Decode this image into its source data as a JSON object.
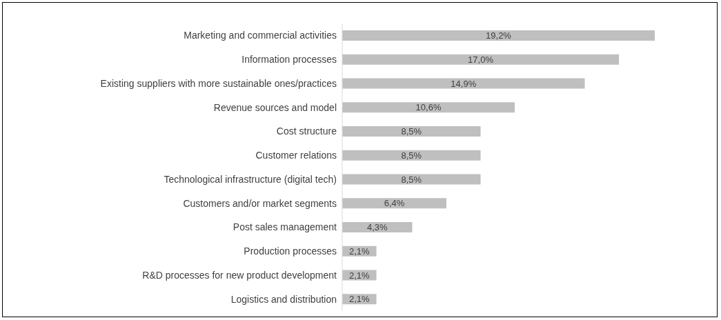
{
  "chart_data": {
    "type": "bar",
    "orientation": "horizontal",
    "categories": [
      "Marketing and commercial activities",
      "Information processes",
      "Existing suppliers with more sustainable ones/practices",
      "Revenue sources and model",
      "Cost structure",
      "Customer relations",
      "Technological infrastructure (digital tech)",
      "Customers and/or market segments",
      "Post sales management",
      "Production processes",
      "R&D processes for new product development",
      "Logistics and distribution"
    ],
    "values": [
      19.2,
      17.0,
      14.9,
      10.6,
      8.5,
      8.5,
      8.5,
      6.4,
      4.3,
      2.1,
      2.1,
      2.1
    ],
    "value_labels": [
      "19,2%",
      "17,0%",
      "14,9%",
      "10,6%",
      "8,5%",
      "8,5%",
      "8,5%",
      "6,4%",
      "4,3%",
      "2,1%",
      "2,1%",
      "2,1%"
    ],
    "color": "#bfbfbf",
    "grid": false,
    "legend": false
  }
}
